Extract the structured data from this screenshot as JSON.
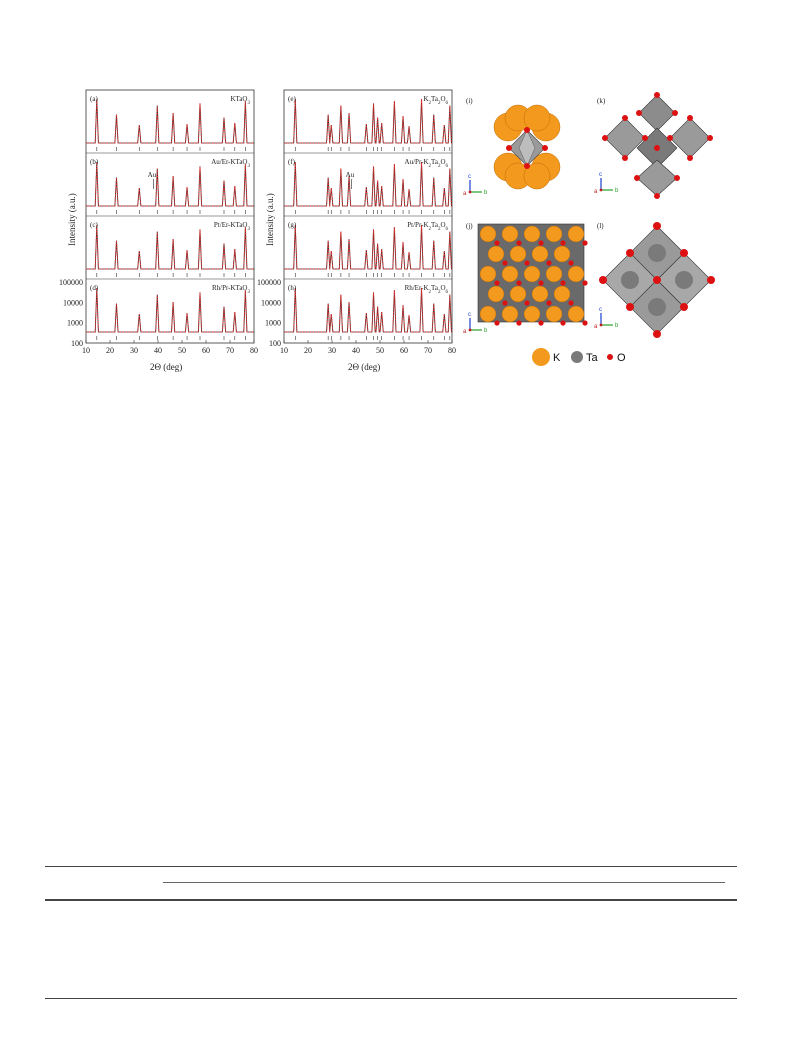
{
  "figure": {
    "left_column": {
      "y_axis_title": "Intensity (a.u.)",
      "x_axis_title": "2Θ (deg)",
      "x_ticks": [
        "10",
        "20",
        "30",
        "40",
        "50",
        "60",
        "70",
        "80"
      ],
      "y_ticks": [
        "100000",
        "10000",
        "1000",
        "100"
      ],
      "panels": [
        {
          "tag": "(a)",
          "name": "KTaO",
          "sub": "3"
        },
        {
          "tag": "(b)",
          "name": "Au/Er-KTaO",
          "sub": "3",
          "annotation": "Au"
        },
        {
          "tag": "(c)",
          "name": "Pt/Er-KTaO",
          "sub": "3"
        },
        {
          "tag": "(d)",
          "name": "Rh/Pr-KTaO",
          "sub": "3"
        }
      ],
      "peaks": [
        14.5,
        22.7,
        32.2,
        39.7,
        46.3,
        52.1,
        57.5,
        67.5,
        72.0,
        76.4
      ]
    },
    "middle_column": {
      "y_axis_title": "Intensity (a.u.)",
      "x_axis_title": "2Θ (deg)",
      "x_ticks": [
        "10",
        "20",
        "30",
        "40",
        "50",
        "60",
        "70",
        "80"
      ],
      "y_ticks": [
        "100000",
        "10000",
        "1000",
        "100"
      ],
      "panels": [
        {
          "tag": "(e)",
          "name_parts": [
            "K",
            "2",
            "Ta",
            "2",
            "O",
            "6"
          ]
        },
        {
          "tag": "(f)",
          "name_parts": [
            "Au/Pr-K",
            "2",
            "Ta",
            "2",
            "O",
            "6"
          ],
          "annotation": "Au"
        },
        {
          "tag": "(g)",
          "name_parts": [
            "Pt/Pr-K",
            "2",
            "Ta",
            "2",
            "O",
            "6"
          ]
        },
        {
          "tag": "(h)",
          "name_parts": [
            "Rh/Er-K",
            "2",
            "Ta",
            "2",
            "O",
            "6"
          ]
        }
      ],
      "peaks": [
        14.7,
        28.4,
        29.7,
        33.7,
        37.1,
        44.3,
        47.3,
        49.0,
        50.7,
        56.0,
        59.6,
        62.1,
        67.3,
        72.4,
        76.8,
        79.1
      ]
    },
    "structures": {
      "tags": [
        "(i)",
        "(k)",
        "(j)",
        "(l)"
      ],
      "axis_labels": {
        "a": "a",
        "b": "b",
        "c": "c"
      }
    },
    "legend": [
      {
        "label": "K",
        "color": "#f39a1e"
      },
      {
        "label": "Ta",
        "color": "#7a7a7a"
      },
      {
        "label": "O",
        "color": "#dd1111"
      }
    ],
    "colors": {
      "calc": "#e03030",
      "obs": "#222222",
      "diff": "#555555"
    }
  }
}
